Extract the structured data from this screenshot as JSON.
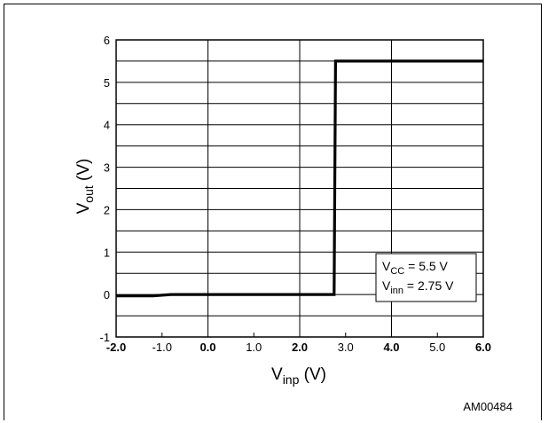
{
  "chart_data": {
    "type": "line",
    "title": "",
    "xlabel": {
      "main": "V",
      "sub": "inp",
      "unit": " (V)"
    },
    "ylabel": {
      "main": "V",
      "sub": "out",
      "unit": " (V)"
    },
    "xlim": [
      -2.0,
      6.0
    ],
    "ylim": [
      -1,
      6
    ],
    "x_ticks": [
      -2.0,
      -1.0,
      0.0,
      1.0,
      2.0,
      3.0,
      4.0,
      5.0,
      6.0
    ],
    "x_tick_labels": [
      "-2.0",
      "-1.0",
      "0.0",
      "1.0",
      "2.0",
      "3.0",
      "4.0",
      "5.0",
      "6.0"
    ],
    "y_ticks": [
      -1,
      0,
      1,
      2,
      3,
      4,
      5,
      6
    ],
    "y_tick_labels": [
      "-1",
      "0",
      "1",
      "2",
      "3",
      "4",
      "5",
      "6"
    ],
    "grid": true,
    "series": [
      {
        "x": [
          -2.0,
          -1.4,
          -1.2,
          -0.8,
          0.0,
          2.75,
          2.78,
          6.0
        ],
        "y": [
          -0.03,
          -0.03,
          -0.03,
          0.0,
          0.0,
          0.0,
          5.5,
          5.5
        ]
      }
    ],
    "annotation": {
      "line1": {
        "main": "V",
        "sub": "CC",
        "rest": " = 5.5 V"
      },
      "line2": {
        "main": "V",
        "sub": "inn",
        "rest": " = 2.75 V"
      },
      "position": "bottom-right"
    },
    "figure_id": "AM00484"
  }
}
